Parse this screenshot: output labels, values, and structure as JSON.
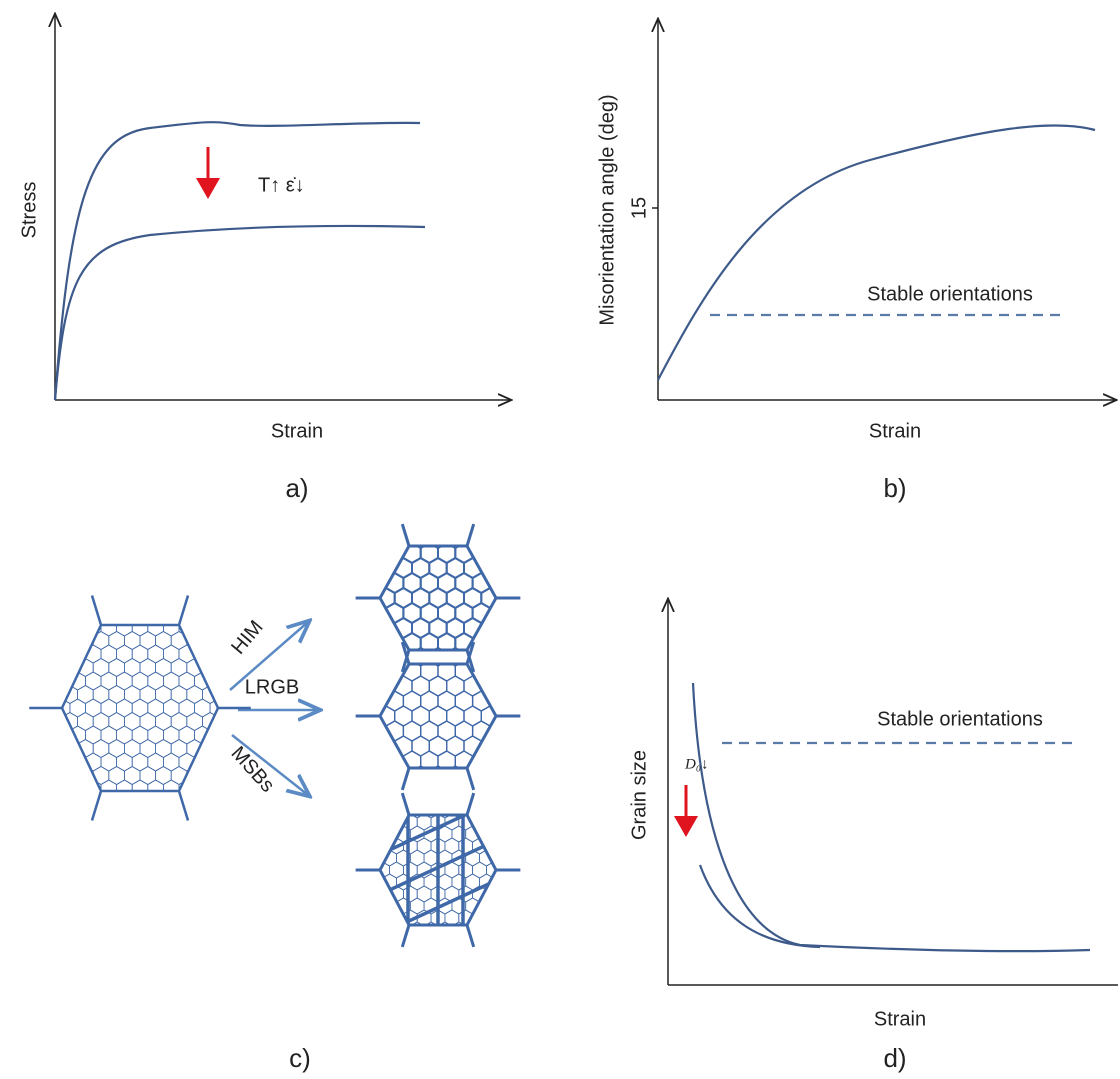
{
  "panels": [
    {
      "label": "a)",
      "x_label": "Strain",
      "y_label": "Stress",
      "annotation": "T↑  ε̇↓"
    },
    {
      "label": "b)",
      "x_label": "Strain",
      "y_label": "Misorientation angle (deg)",
      "y_tick": "15",
      "annotation": "Stable orientations"
    },
    {
      "label": "c)",
      "arrows": [
        "HIM",
        "LRGB",
        "MSBs"
      ]
    },
    {
      "label": "d)",
      "x_label": "Strain",
      "y_label": "Grain size",
      "annotation": "Stable orientations",
      "symbol": "D₀↓"
    }
  ]
}
